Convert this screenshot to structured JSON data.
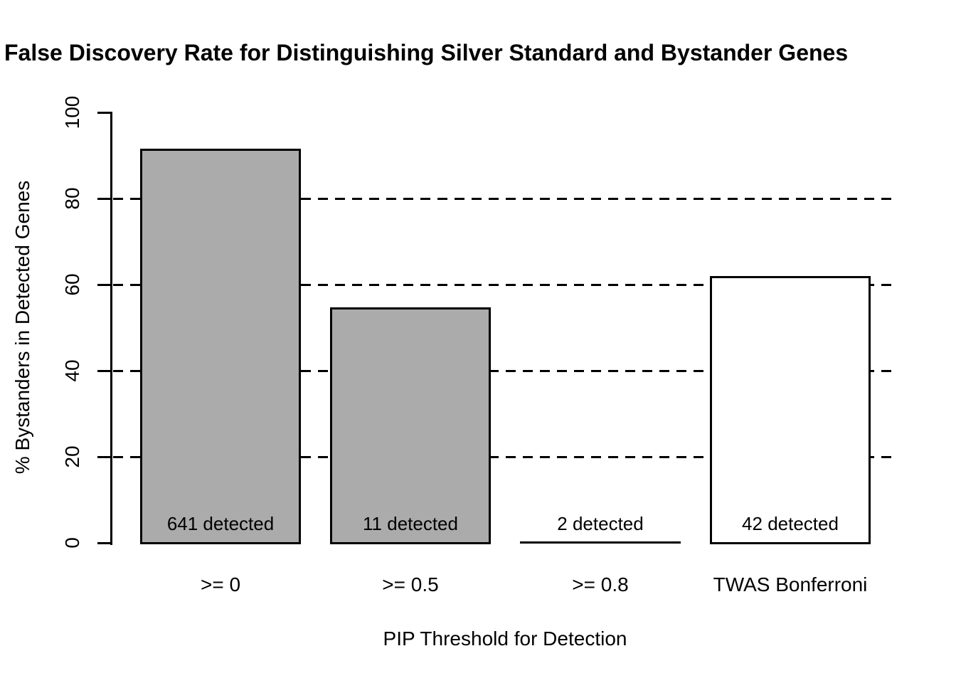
{
  "title": "False Discovery Rate for Distinguishing Silver Standard and Bystander Genes",
  "chart_data": {
    "type": "bar",
    "title": "False Discovery Rate for Distinguishing Silver Standard and Bystander Genes",
    "xlabel": "PIP Threshold for Detection",
    "ylabel": "% Bystanders in Detected Genes",
    "categories": [
      ">= 0",
      ">= 0.5",
      ">= 0.8",
      "TWAS Bonferroni"
    ],
    "values": [
      91.4,
      54.5,
      0,
      61.9
    ],
    "bar_labels": [
      "641 detected",
      "11 detected",
      "2 detected",
      "42 detected"
    ],
    "detected_counts": [
      641,
      11,
      2,
      42
    ],
    "bar_fills": [
      "#ABABAB",
      "#ABABAB",
      "#ABABAB",
      "#FFFFFF"
    ],
    "bar_border_color": "#000000",
    "yticks": [
      0,
      20,
      40,
      60,
      80,
      100
    ],
    "gridlines": [
      20,
      40,
      60,
      80
    ],
    "grid_style": "dashed",
    "ylim": [
      0,
      100
    ],
    "legend": "none",
    "background_color": "#FFFFFF"
  }
}
